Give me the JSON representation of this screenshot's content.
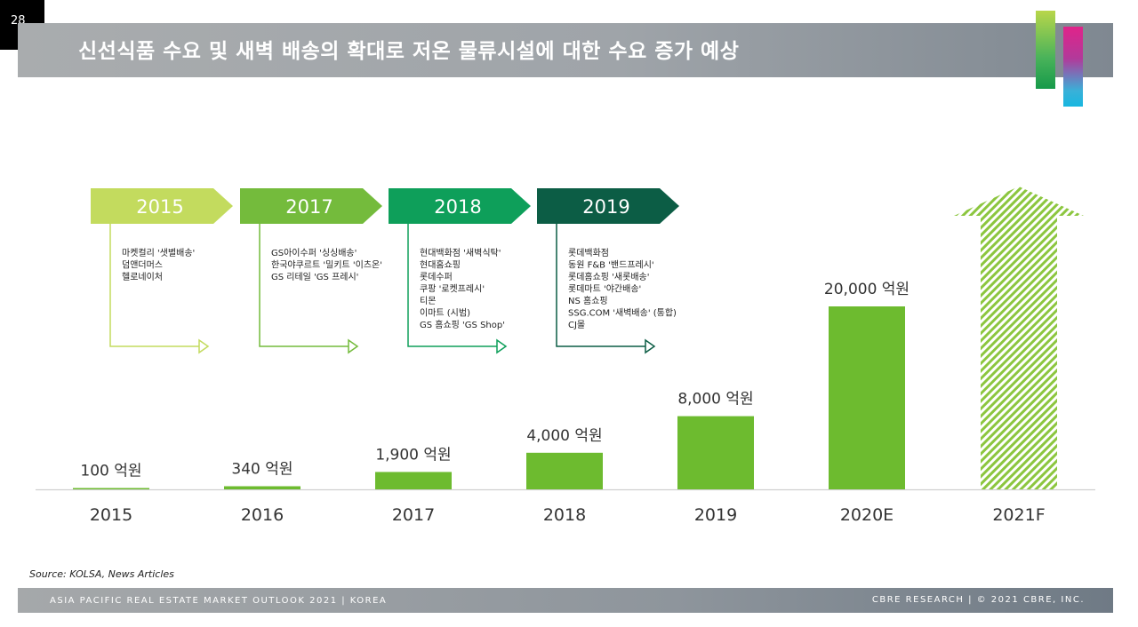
{
  "page_number": "28",
  "header": {
    "title": "신선식품 수요 및 새벽 배송의 확대로 저온 물류시설에 대한 수요 증가 예상"
  },
  "timeline": [
    {
      "year": "2015",
      "color": "#c3db5e",
      "items": [
        "마켓컬리 '샛별배송'",
        "덤앤더머스",
        "헬로네이처"
      ]
    },
    {
      "year": "2017",
      "color": "#74bb3c",
      "items": [
        "GS아이수퍼 '싱싱배송'",
        "한국야쿠르트 '밀키트 '이츠온'",
        "GS 리테일 'GS 프레시'"
      ]
    },
    {
      "year": "2018",
      "color": "#0e9f5a",
      "items": [
        "현대백화점 '새벽식탁'",
        "현대홈쇼핑",
        "롯데수퍼",
        "쿠팡 '로켓프레시'",
        "티몬",
        "이마트 (시범)",
        "GS 홈쇼핑 'GS Shop'"
      ]
    },
    {
      "year": "2019",
      "color": "#0c5d45",
      "items": [
        "롯데백화점",
        "동원 F&B '밴드프레시'",
        "롯데홈쇼핑 '새롯배송'",
        "롯데마트 '야간배송'",
        "NS 홈쇼핑",
        "SSG.COM '새벽배송' (통합)",
        "CJ몰"
      ]
    }
  ],
  "chart_data": {
    "type": "bar",
    "categories": [
      "2015",
      "2016",
      "2017",
      "2018",
      "2019",
      "2020E",
      "2021F"
    ],
    "values": [
      100,
      340,
      1900,
      4000,
      8000,
      20000,
      null
    ],
    "data_labels": [
      "100 억원",
      "340 억원",
      "1,900 억원",
      "4,000 억원",
      "8,000 억원",
      "20,000 억원",
      ""
    ],
    "bar_color": "#6dbb2f",
    "forecast_style": "hatched-arrow",
    "forecast_color": "#8cc63f",
    "title": "",
    "xlabel": "",
    "ylabel": ""
  },
  "source": "Source: KOLSA, News Articles",
  "footer": {
    "left": "ASIA PACIFIC REAL ESTATE MARKET OUTLOOK 2021 | KOREA",
    "right": "CBRE RESEARCH | © 2021 CBRE, INC."
  }
}
